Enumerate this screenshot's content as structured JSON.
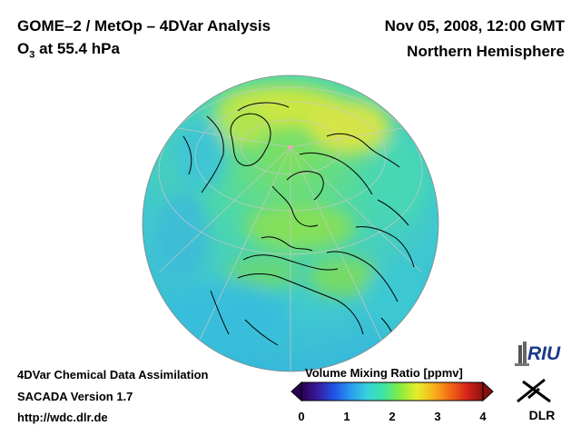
{
  "header": {
    "title": "GOME–2 / MetOp – 4DVar Analysis",
    "species_main": "O",
    "species_sub": "3",
    "level_text": " at 55.4 hPa",
    "datetime": "Nov 05, 2008, 12:00 GMT",
    "region": "Northern Hemisphere"
  },
  "footer": {
    "line1": "4DVar Chemical Data Assimilation",
    "line2": "SACADA Version 1.7",
    "line3": "http://wdc.dlr.de"
  },
  "colorbar": {
    "title": "Volume Mixing Ratio [ppmv]",
    "ticks": [
      "0",
      "1",
      "2",
      "3",
      "4"
    ],
    "tick_values": [
      0,
      1,
      2,
      3,
      4
    ],
    "range": [
      0,
      4
    ],
    "colors": [
      "#2a0050",
      "#3a1aa0",
      "#1f55e6",
      "#2a9cf0",
      "#38d2dc",
      "#3ee6a0",
      "#88ec3c",
      "#e6ee2a",
      "#f8b21c",
      "#f26a14",
      "#d8261a",
      "#8a1010"
    ]
  },
  "map": {
    "projection": "orthographic",
    "field_colors": {
      "ocean_tropics": "#3cc0d8",
      "mid": "#40d6b0",
      "high": "#7ee25a",
      "max": "#d6e83a",
      "coast": "#000000"
    }
  },
  "logos": {
    "riu_text": "RIU",
    "dlr_text": "DLR"
  }
}
